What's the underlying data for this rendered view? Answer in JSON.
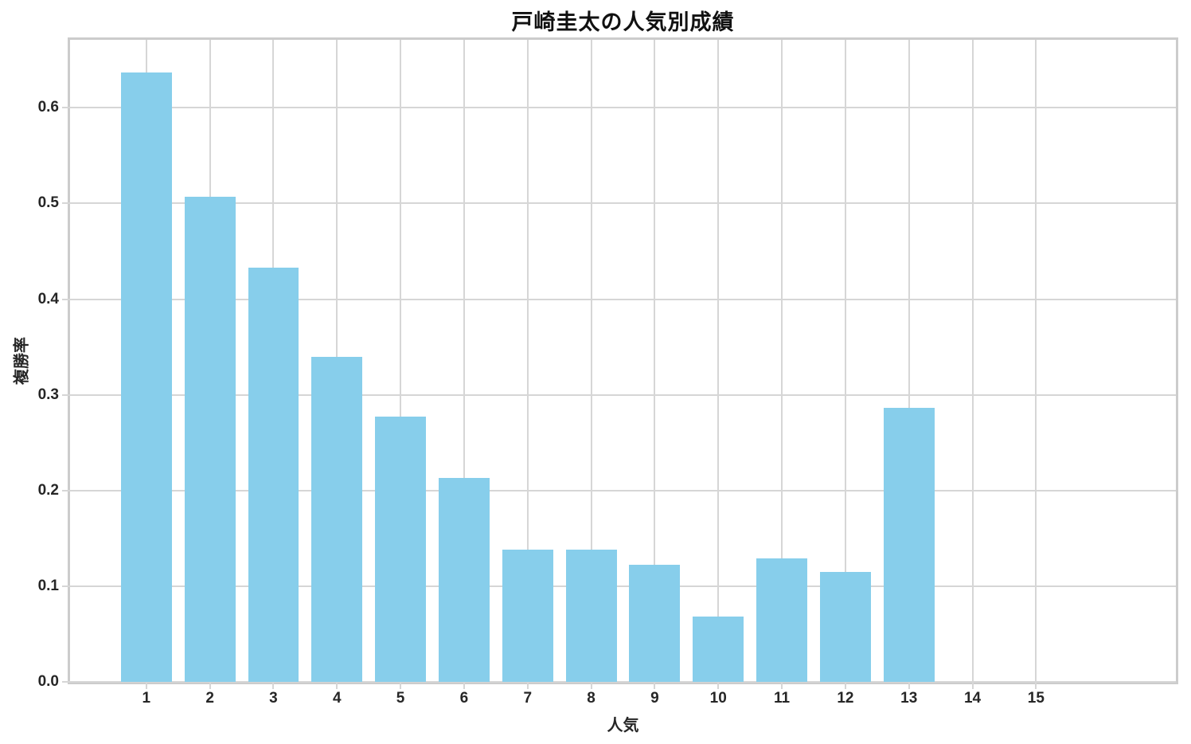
{
  "chart_data": {
    "type": "bar",
    "title": "戸崎圭太の人気別成績",
    "xlabel": "人気",
    "ylabel": "複勝率",
    "categories": [
      1,
      2,
      3,
      4,
      5,
      6,
      7,
      8,
      9,
      10,
      11,
      12,
      13,
      14,
      15
    ],
    "values": [
      0.637,
      0.507,
      0.433,
      0.34,
      0.277,
      0.213,
      0.138,
      0.138,
      0.122,
      0.068,
      0.129,
      0.115,
      0.286,
      0,
      0
    ],
    "yticks": [
      0.0,
      0.1,
      0.2,
      0.3,
      0.4,
      0.5,
      0.6
    ],
    "ylim": [
      0,
      0.671
    ],
    "xlim": [
      -0.2,
      17.2
    ],
    "bar_width": 0.8,
    "grid": true,
    "legend": "none",
    "colors": {
      "bar": "#87ceeb",
      "grid": "#d6d6d6",
      "spine": "#cccccc",
      "text": "#262626",
      "title": "#111111",
      "background": "#ffffff"
    }
  }
}
